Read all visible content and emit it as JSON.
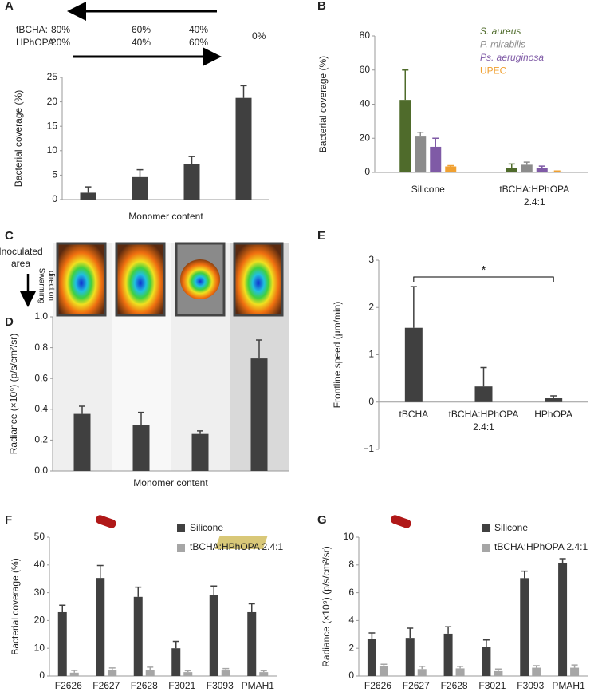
{
  "chart_data": [
    {
      "type": "bar",
      "label": "A",
      "categories": [
        null,
        null,
        null,
        null
      ],
      "values": [
        1.4,
        4.6,
        7.3,
        20.8
      ],
      "errors": [
        1.2,
        1.5,
        1.5,
        2.5
      ],
      "color": "#404040",
      "ylabel": "Bacterial coverage (%)",
      "xlabel": "Monomer content",
      "ylim": [
        0,
        25
      ],
      "yticks": [
        0,
        5,
        10,
        15,
        20,
        25
      ],
      "annotations": [
        "tBCHA:",
        "80%",
        "60%",
        "40%",
        "HPhOPA:",
        "20%",
        "40%",
        "60%",
        "0%"
      ]
    },
    {
      "type": "bar",
      "label": "B",
      "categories": [
        "Silicone",
        "tBCHA:HPhOPA 2.4:1"
      ],
      "series": [
        {
          "name": "S. aureus",
          "color": "#4f6b2b",
          "italic": true,
          "values": [
            42.5,
            2.5
          ],
          "errors": [
            17.5,
            2.5
          ]
        },
        {
          "name": "P. mirabilis",
          "color": "#8c8c8c",
          "italic": true,
          "values": [
            21,
            4.5
          ],
          "errors": [
            2.5,
            1.5
          ]
        },
        {
          "name": "Ps. aeruginosa",
          "color": "#7f5aa6",
          "italic": true,
          "values": [
            15,
            2.5
          ],
          "errors": [
            5,
            1.2
          ]
        },
        {
          "name": "UPEC",
          "color": "#f0a030",
          "italic": false,
          "values": [
            3.5,
            0.5
          ],
          "errors": [
            0.5,
            0.3
          ]
        }
      ],
      "ylabel": "Bacterial coverage (%)",
      "ylim": [
        0,
        80
      ],
      "yticks": [
        0,
        20,
        40,
        60,
        80
      ]
    },
    {
      "type": "bar",
      "label": "D",
      "categories": [
        null,
        null,
        null,
        null
      ],
      "values": [
        0.37,
        0.3,
        0.24,
        0.73
      ],
      "errors": [
        0.05,
        0.08,
        0.02,
        0.12
      ],
      "color": "#404040",
      "ylabel": "Radiance (×10⁹) (p/s/cm²/sr)",
      "xlabel": "Monomer content",
      "ylim": [
        0,
        1
      ],
      "yticks": [
        {
          "value": 0,
          "label": "0.0"
        },
        0.2,
        0.4,
        0.6,
        0.8,
        {
          "value": 1,
          "label": "1.0"
        }
      ]
    },
    {
      "type": "bar",
      "label": "E",
      "categories": [
        "tBCHA",
        "tBCHA:HPhOPA 2.4:1",
        "HPhOPA"
      ],
      "values": [
        1.57,
        0.33,
        0.08
      ],
      "errors": [
        0.87,
        0.4,
        0.05
      ],
      "color": "#404040",
      "ylabel": "Frontline speed (μm/min)",
      "ylim": [
        -1,
        3
      ],
      "yticks": [
        {
          "value": -1,
          "label": "−1"
        },
        0,
        1,
        2,
        3
      ],
      "annotation": "*"
    },
    {
      "type": "bar",
      "label": "F",
      "categories": [
        "F2626",
        "F2627",
        "F2628",
        "F3021",
        "F3093",
        "PMAH1"
      ],
      "series": [
        {
          "name": "Silicone",
          "color": "#404040",
          "values": [
            23,
            35.3,
            28.5,
            10,
            29.2,
            23
          ],
          "errors": [
            2.5,
            4.5,
            3.5,
            2.5,
            3.2,
            3
          ]
        },
        {
          "name": "tBCHA:HPhOPA 2.4:1",
          "color": "#a6a6a6",
          "values": [
            1.2,
            2.2,
            2.2,
            1.4,
            2,
            1.4
          ],
          "errors": [
            0.8,
            0.7,
            1,
            0.5,
            0.7,
            0.5
          ]
        }
      ],
      "ylabel": "Bacterial coverage (%)",
      "ylim": [
        0,
        50
      ],
      "yticks": [
        0,
        10,
        20,
        30,
        40,
        50
      ]
    },
    {
      "type": "bar",
      "label": "G",
      "categories": [
        "F2626",
        "F2627",
        "F2628",
        "F3021",
        "F3093",
        "PMAH1"
      ],
      "series": [
        {
          "name": "Silicone",
          "color": "#404040",
          "values": [
            2.7,
            2.75,
            3.05,
            2.1,
            7.05,
            8.15
          ],
          "errors": [
            0.4,
            0.7,
            0.5,
            0.5,
            0.5,
            0.3
          ]
        },
        {
          "name": "tBCHA:HPhOPA 2.4:1",
          "color": "#a6a6a6",
          "values": [
            0.7,
            0.5,
            0.55,
            0.35,
            0.6,
            0.6
          ],
          "errors": [
            0.15,
            0.2,
            0.15,
            0.15,
            0.15,
            0.2
          ]
        }
      ],
      "ylabel": "Radiance (×10⁹) (p/s/cm²/sr)",
      "ylim": [
        0,
        10
      ],
      "yticks": [
        0,
        2,
        4,
        6,
        8,
        10
      ]
    }
  ],
  "image_panel": {
    "label": "C",
    "inoculated": [
      "Inoculated",
      "area"
    ],
    "swarming": [
      "Swarming",
      "direction"
    ]
  }
}
